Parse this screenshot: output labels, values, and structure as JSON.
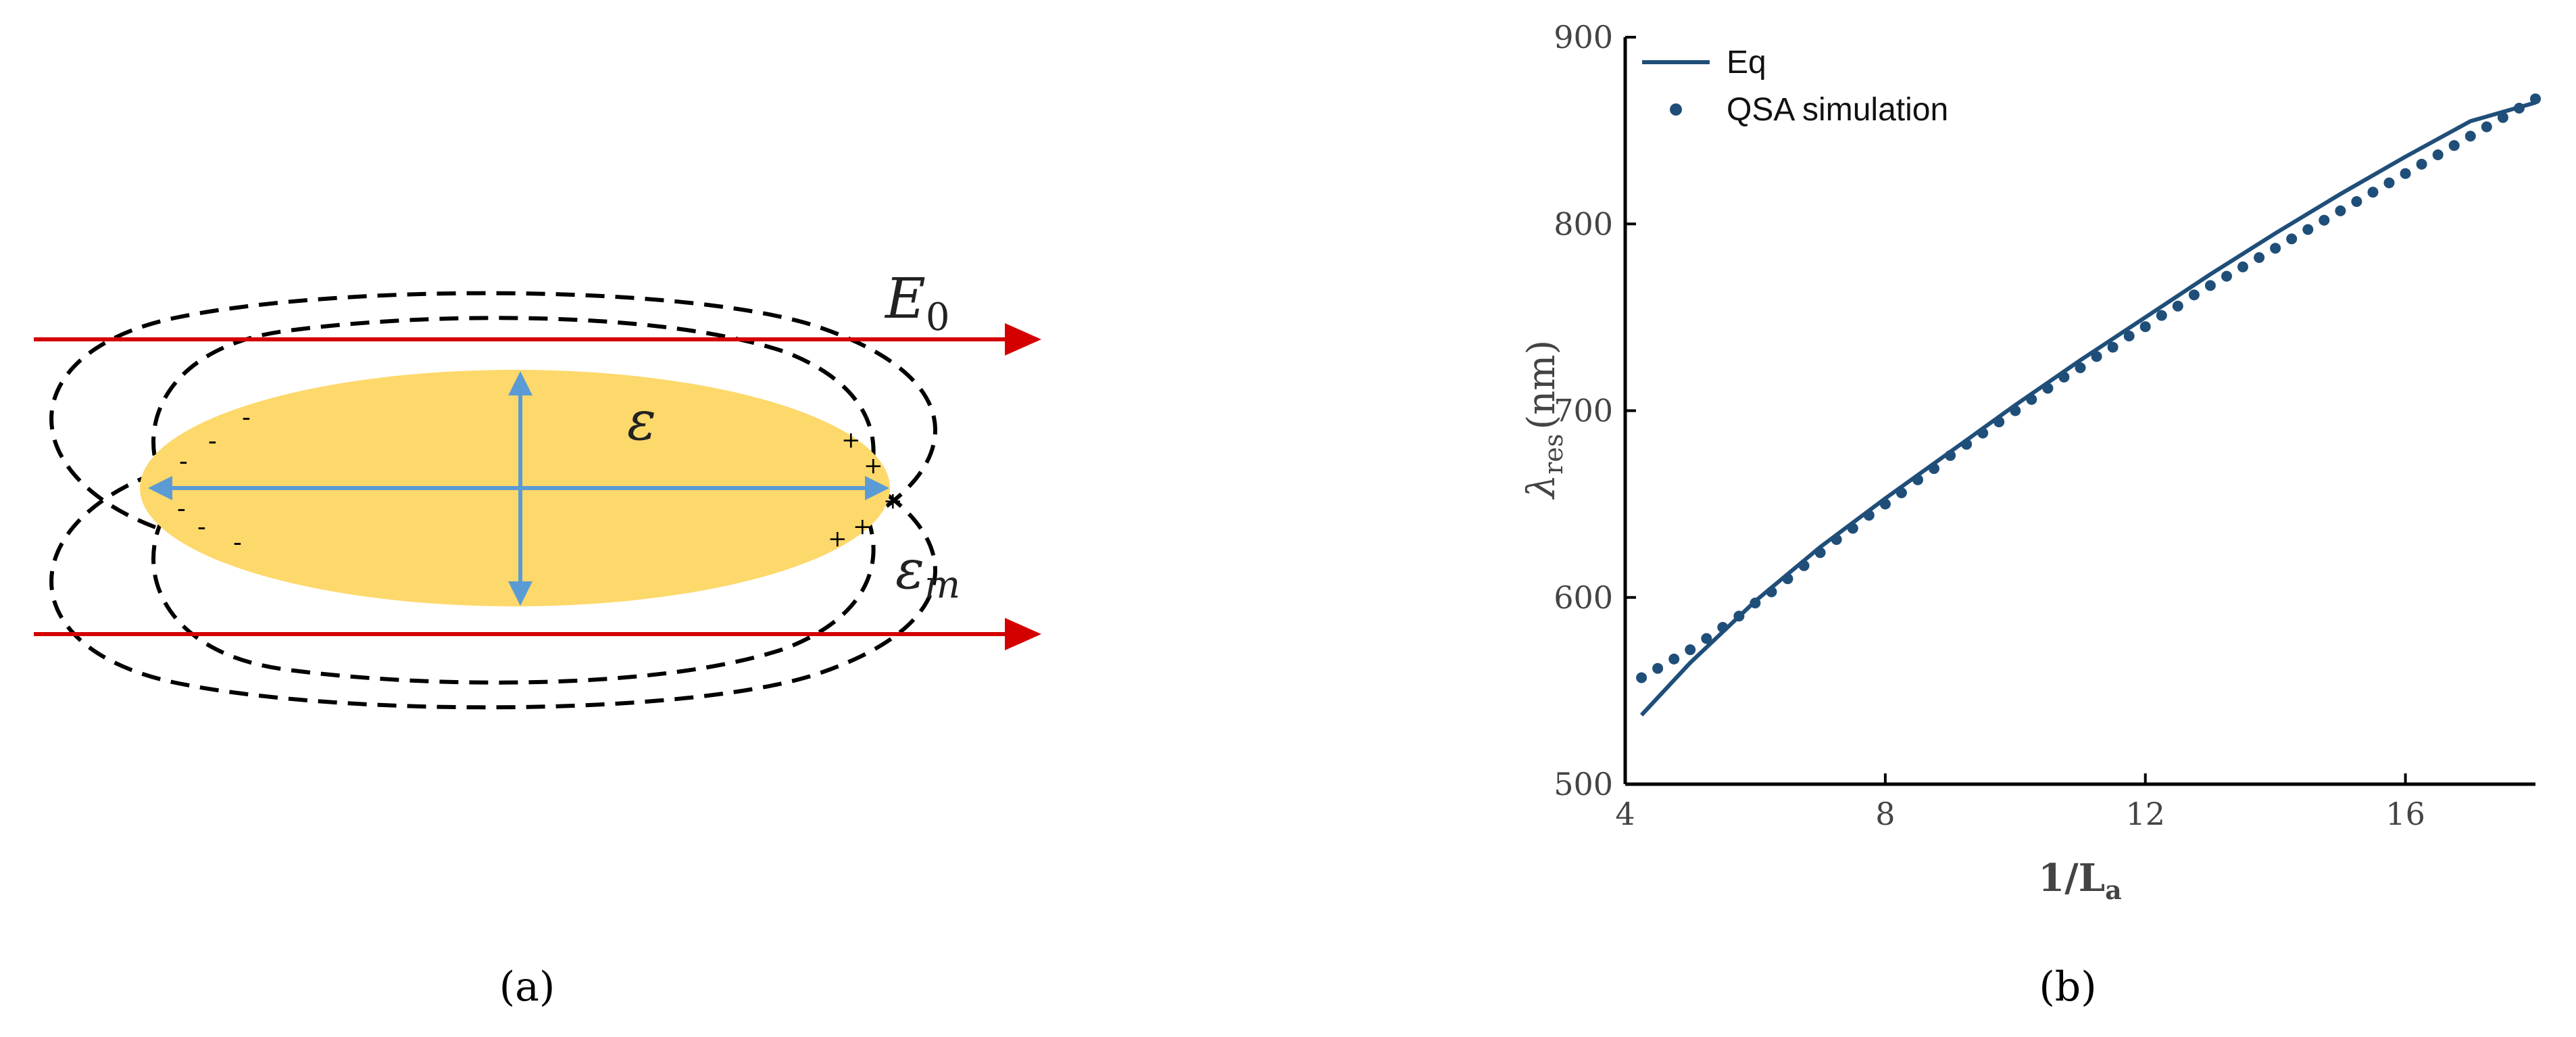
{
  "panel_a": {
    "caption": "(a)",
    "field_label": "E",
    "field_subscript": "0",
    "particle_label": "ε",
    "medium_label": "ε",
    "medium_subscript": "m",
    "negative_charge": "-",
    "positive_charge": "+",
    "colors": {
      "particle": "#FDD86B",
      "field": "#D40000",
      "axes": "#5B9BD5",
      "dipole": "#000000"
    }
  },
  "panel_b": {
    "caption": "(b)",
    "colors": {
      "line": "#1F4E79",
      "points": "#1F4E79"
    }
  },
  "chart_data": {
    "type": "line",
    "title": "",
    "xlabel": "1/L",
    "xlabel_subscript": "a",
    "ylabel": "λ",
    "ylabel_subscript": "res",
    "ylabel_unit": "(nm)",
    "xlim": [
      4,
      18
    ],
    "ylim": [
      500,
      900
    ],
    "xticks": [
      4,
      8,
      12,
      16
    ],
    "yticks": [
      500,
      600,
      700,
      800,
      900
    ],
    "grid": false,
    "legend": "top-left",
    "series": [
      {
        "name": "Eq",
        "style": "line",
        "x": [
          4.25,
          5,
          6,
          7,
          8,
          9,
          10,
          11,
          12,
          13,
          14,
          15,
          16,
          17,
          18
        ],
        "y": [
          537,
          565,
          598,
          627,
          653,
          678,
          703,
          727,
          750,
          773,
          795,
          816,
          836,
          855,
          865
        ]
      },
      {
        "name": "QSA simulation",
        "style": "points",
        "x": [
          4.25,
          4.5,
          4.75,
          5,
          5.25,
          5.5,
          5.75,
          6,
          6.25,
          6.5,
          6.75,
          7,
          7.25,
          7.5,
          7.75,
          8,
          8.25,
          8.5,
          8.75,
          9,
          9.25,
          9.5,
          9.75,
          10,
          10.25,
          10.5,
          10.75,
          11,
          11.25,
          11.5,
          11.75,
          12,
          12.25,
          12.5,
          12.75,
          13,
          13.25,
          13.5,
          13.75,
          14,
          14.25,
          14.5,
          14.75,
          15,
          15.25,
          15.5,
          15.75,
          16,
          16.25,
          16.5,
          16.75,
          17,
          17.25,
          17.5,
          17.75,
          18
        ],
        "y": [
          557,
          562,
          567,
          572,
          578,
          584,
          590,
          597,
          603,
          610,
          617,
          624,
          631,
          637,
          644,
          650,
          656,
          663,
          669,
          676,
          682,
          688,
          694,
          700,
          706,
          712,
          718,
          723,
          729,
          734,
          740,
          745,
          751,
          756,
          762,
          767,
          772,
          777,
          782,
          787,
          792,
          797,
          802,
          807,
          812,
          817,
          822,
          827,
          832,
          837,
          842,
          847,
          852,
          857,
          862,
          867
        ]
      }
    ]
  }
}
